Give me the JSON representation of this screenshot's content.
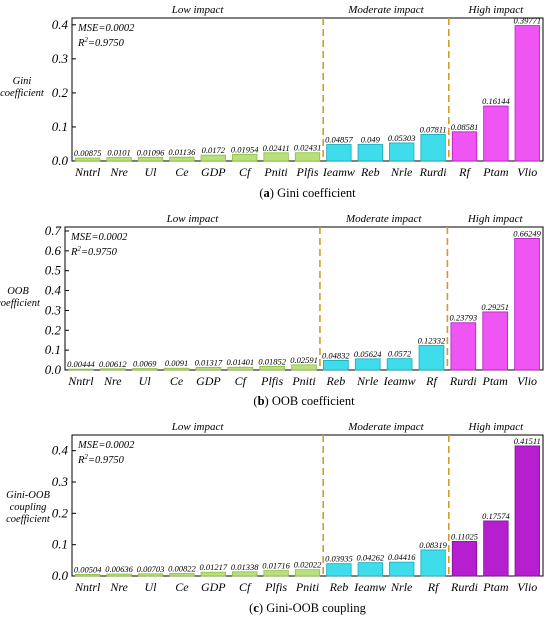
{
  "figure": {
    "colors": {
      "low_fill": "#b7e07a",
      "low_stroke": "#8cbf3f",
      "moderate_fill": "#3fdcec",
      "moderate_stroke": "#1aa9b8",
      "high_fill_a": "#ee55f2",
      "high_stroke_a": "#b01fc2",
      "high_fill_c": "#b51fcf",
      "high_stroke_c": "#7a0f96",
      "divider": "#d49a2a",
      "axis": "#000000"
    }
  },
  "chart_data": [
    {
      "type": "bar",
      "caption_prefix": "(a)",
      "caption_text": "Gini coefficient",
      "ylabel_lines": [
        "Gini",
        "coefficient"
      ],
      "ylim": [
        0,
        0.42
      ],
      "yticks": [
        "0.0",
        "0.1",
        "0.2",
        "0.3",
        "0.4"
      ],
      "ytick_values": [
        0,
        0.1,
        0.2,
        0.3,
        0.4
      ],
      "metrics": [
        "MSE=0.0002",
        "R2=0.9750"
      ],
      "groups": [
        {
          "label": "Low impact",
          "count": 8
        },
        {
          "label": "Moderate impact",
          "count": 4
        },
        {
          "label": "High impact",
          "count": 3
        }
      ],
      "categories": [
        "Nntrl",
        "Nre",
        "Ul",
        "Ce",
        "GDP",
        "Cf",
        "Pniti",
        "Plfis",
        "Ieamw",
        "Reb",
        "Nrle",
        "Rurdi",
        "Rf",
        "Ptam",
        "Vlio"
      ],
      "values": [
        0.00875,
        0.0101,
        0.01096,
        0.01136,
        0.0172,
        0.01954,
        0.02411,
        0.02431,
        0.04857,
        0.049,
        0.05303,
        0.07811,
        0.08581,
        0.16144,
        0.39771
      ],
      "value_labels": [
        "0.00875",
        "0.0101",
        "0.01096",
        "0.01136",
        "0.0172",
        "0.01954",
        "0.02411",
        "0.02431",
        "0.04857",
        "0.049",
        "0.05303",
        "0.07811",
        "0.08581",
        "0.16144",
        "0.39771"
      ]
    },
    {
      "type": "bar",
      "caption_prefix": "(b)",
      "caption_text": "OOB coefficient",
      "ylabel_lines": [
        "OOB",
        "coefficient"
      ],
      "ylim": [
        0,
        0.72
      ],
      "yticks": [
        "0.0",
        "0.1",
        "0.2",
        "0.3",
        "0.4",
        "0.5",
        "0.6",
        "0.7"
      ],
      "ytick_values": [
        0,
        0.1,
        0.2,
        0.3,
        0.4,
        0.5,
        0.6,
        0.7
      ],
      "metrics": [
        "MSE=0.0002",
        "R2=0.9750"
      ],
      "groups": [
        {
          "label": "Low impact",
          "count": 8
        },
        {
          "label": "Moderate impact",
          "count": 4
        },
        {
          "label": "High impact",
          "count": 3
        }
      ],
      "categories": [
        "Nntrl",
        "Nre",
        "Ul",
        "Ce",
        "GDP",
        "Cf",
        "Plfis",
        "Pniti",
        "Reb",
        "Nrle",
        "Ieamw",
        "Rf",
        "Rurdi",
        "Ptam",
        "Vlio"
      ],
      "values": [
        0.00444,
        0.00612,
        0.0069,
        0.0091,
        0.01317,
        0.01401,
        0.01852,
        0.02591,
        0.04832,
        0.05624,
        0.0572,
        0.12332,
        0.23793,
        0.29251,
        0.66249
      ],
      "value_labels": [
        "0.00444",
        "0.00612",
        "0.0069",
        "0.0091",
        "0.01317",
        "0.01401",
        "0.01852",
        "0.02591",
        "0.04832",
        "0.05624",
        "0.0572",
        "0.12332",
        "0.23793",
        "0.29251",
        "0.66249"
      ]
    },
    {
      "type": "bar",
      "caption_prefix": "(c)",
      "caption_text": "Gini-OOB coupling",
      "ylabel_lines": [
        "Gini-OOB",
        "coupling",
        "coefficient"
      ],
      "ylim": [
        0,
        0.45
      ],
      "yticks": [
        "0.0",
        "0.1",
        "0.2",
        "0.3",
        "0.4"
      ],
      "ytick_values": [
        0,
        0.1,
        0.2,
        0.3,
        0.4
      ],
      "metrics": [
        "MSE=0.0002",
        "R2=0.9750"
      ],
      "groups": [
        {
          "label": "Low impact",
          "count": 8
        },
        {
          "label": "Moderate impact",
          "count": 4
        },
        {
          "label": "High impact",
          "count": 3
        }
      ],
      "categories": [
        "Nntrl",
        "Nre",
        "Ul",
        "Ce",
        "GDP",
        "Cf",
        "Plfis",
        "Pniti",
        "Reb",
        "Ieamw",
        "Nrle",
        "Rf",
        "Rurdi",
        "Ptam",
        "Vlio"
      ],
      "values": [
        0.00504,
        0.00636,
        0.00703,
        0.00822,
        0.01217,
        0.01338,
        0.01716,
        0.02022,
        0.03935,
        0.04262,
        0.04416,
        0.08319,
        0.11025,
        0.17574,
        0.41511
      ],
      "value_labels": [
        "0.00504",
        "0.00636",
        "0.00703",
        "0.00822",
        "0.01217",
        "0.01338",
        "0.01716",
        "0.02022",
        "0.03935",
        "0.04262",
        "0.04416",
        "0.08319",
        "0.11025",
        "0.17574",
        "0.41511"
      ]
    }
  ]
}
